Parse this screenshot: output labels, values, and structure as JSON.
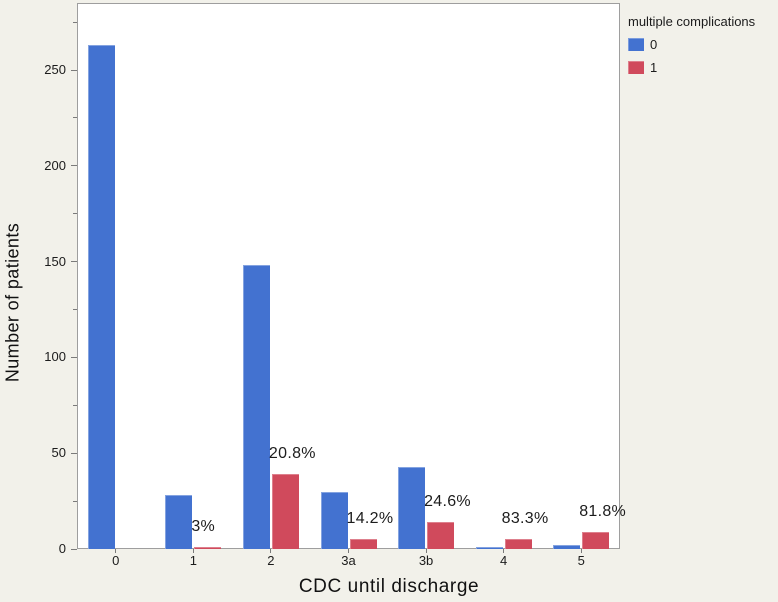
{
  "chart_data": {
    "type": "bar",
    "title": "",
    "xlabel": "CDC until discharge",
    "ylabel": "Number of patients",
    "categories": [
      "0",
      "1",
      "2",
      "3a",
      "3b",
      "4",
      "5"
    ],
    "series": [
      {
        "name": "0",
        "color": "#4372d0",
        "values": [
          263,
          28,
          148,
          30,
          43,
          1,
          2
        ]
      },
      {
        "name": "1",
        "color": "#d04a5c",
        "values": [
          0,
          1,
          39,
          5,
          14,
          5,
          9
        ]
      }
    ],
    "bar_labels": [
      "",
      "3%",
      "20.8%",
      "14.2%",
      "24.6%",
      "83.3%",
      "81.8%"
    ],
    "yticks": [
      0,
      50,
      100,
      150,
      200,
      250
    ],
    "yticks_minor": [
      25,
      75,
      125,
      175,
      225,
      275
    ],
    "ylim": [
      0,
      285
    ],
    "grid": false,
    "legend": {
      "title": "multiple complications",
      "position": "top-right",
      "items": [
        {
          "label": "0",
          "color": "#4372d0"
        },
        {
          "label": "1",
          "color": "#d04a5c"
        }
      ]
    },
    "colors": {
      "background": "#f2f1ea",
      "plot_background": "#ffffff",
      "frame": "#9e9e9e",
      "text": "#1c1c1c"
    }
  }
}
